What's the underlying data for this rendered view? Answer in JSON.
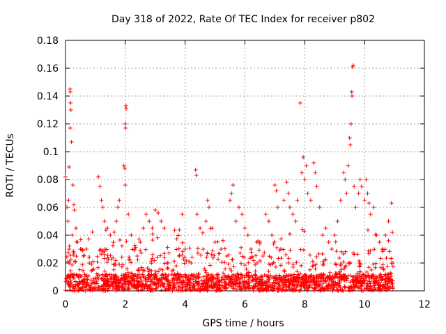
{
  "chart_data": {
    "type": "scatter",
    "title": "Day 318 of 2022, Rate Of TEC Index for receiver p802",
    "xlabel": "GPS time / hours",
    "ylabel": "ROTI / TECUs",
    "xlim": [
      0,
      12
    ],
    "ylim": [
      0,
      0.18
    ],
    "xticks": [
      0,
      2,
      4,
      6,
      8,
      10,
      12
    ],
    "yticks": [
      0,
      0.02,
      0.04,
      0.06,
      0.08,
      0.1,
      0.12,
      0.14,
      0.16,
      0.18
    ],
    "xtick_labels": [
      "0",
      "2",
      "4",
      "6",
      "8",
      "10",
      "12"
    ],
    "ytick_labels": [
      "0",
      "0.02",
      "0.04",
      "0.06",
      "0.08",
      "0.1",
      "0.12",
      "0.14",
      "0.16",
      "0.18"
    ],
    "grid": true,
    "marker": "+",
    "color": "#ff0000",
    "series": [
      {
        "name": "ROTI p802",
        "points": [
          [
            0.0,
            0.082
          ],
          [
            0.05,
            0.06
          ],
          [
            0.08,
            0.05
          ],
          [
            0.1,
            0.065
          ],
          [
            0.12,
            0.03
          ],
          [
            0.15,
            0.145
          ],
          [
            0.16,
            0.143
          ],
          [
            0.17,
            0.135
          ],
          [
            0.18,
            0.13
          ],
          [
            0.16,
            0.117
          ],
          [
            0.2,
            0.107
          ],
          [
            0.12,
            0.089
          ],
          [
            0.25,
            0.076
          ],
          [
            0.28,
            0.062
          ],
          [
            0.3,
            0.058
          ],
          [
            0.35,
            0.045
          ],
          [
            0.22,
            0.04
          ],
          [
            0.4,
            0.035
          ],
          [
            0.5,
            0.03
          ],
          [
            0.6,
            0.025
          ],
          [
            0.7,
            0.03
          ],
          [
            0.8,
            0.02
          ],
          [
            0.9,
            0.015
          ],
          [
            1.1,
            0.082
          ],
          [
            1.15,
            0.075
          ],
          [
            1.2,
            0.065
          ],
          [
            1.25,
            0.06
          ],
          [
            1.3,
            0.05
          ],
          [
            1.4,
            0.045
          ],
          [
            1.5,
            0.04
          ],
          [
            1.6,
            0.035
          ],
          [
            1.7,
            0.05
          ],
          [
            1.75,
            0.06
          ],
          [
            1.8,
            0.065
          ],
          [
            1.95,
            0.09
          ],
          [
            1.98,
            0.088
          ],
          [
            2.0,
            0.12
          ],
          [
            2.02,
            0.133
          ],
          [
            2.03,
            0.131
          ],
          [
            2.01,
            0.117
          ],
          [
            2.0,
            0.076
          ],
          [
            2.1,
            0.055
          ],
          [
            2.2,
            0.04
          ],
          [
            2.3,
            0.03
          ],
          [
            2.4,
            0.025
          ],
          [
            2.5,
            0.035
          ],
          [
            2.6,
            0.045
          ],
          [
            2.7,
            0.055
          ],
          [
            2.8,
            0.05
          ],
          [
            2.9,
            0.045
          ],
          [
            3.0,
            0.058
          ],
          [
            3.1,
            0.056
          ],
          [
            3.2,
            0.05
          ],
          [
            3.3,
            0.045
          ],
          [
            3.4,
            0.02
          ],
          [
            3.6,
            0.015
          ],
          [
            3.8,
            0.025
          ],
          [
            3.9,
            0.055
          ],
          [
            4.0,
            0.03
          ],
          [
            4.2,
            0.02
          ],
          [
            4.35,
            0.087
          ],
          [
            4.37,
            0.083
          ],
          [
            4.4,
            0.055
          ],
          [
            4.5,
            0.045
          ],
          [
            4.6,
            0.03
          ],
          [
            4.7,
            0.05
          ],
          [
            4.75,
            0.065
          ],
          [
            4.8,
            0.06
          ],
          [
            4.9,
            0.045
          ],
          [
            5.0,
            0.035
          ],
          [
            5.2,
            0.03
          ],
          [
            5.4,
            0.025
          ],
          [
            5.5,
            0.065
          ],
          [
            5.55,
            0.07
          ],
          [
            5.6,
            0.076
          ],
          [
            5.7,
            0.05
          ],
          [
            5.8,
            0.06
          ],
          [
            5.9,
            0.055
          ],
          [
            6.0,
            0.045
          ],
          [
            6.1,
            0.04
          ],
          [
            6.2,
            0.03
          ],
          [
            6.4,
            0.035
          ],
          [
            6.5,
            0.035
          ],
          [
            6.6,
            0.025
          ],
          [
            6.7,
            0.055
          ],
          [
            6.8,
            0.05
          ],
          [
            6.9,
            0.04
          ],
          [
            7.0,
            0.076
          ],
          [
            7.05,
            0.072
          ],
          [
            7.1,
            0.06
          ],
          [
            7.2,
            0.03
          ],
          [
            7.3,
            0.065
          ],
          [
            7.4,
            0.078
          ],
          [
            7.45,
            0.07
          ],
          [
            7.5,
            0.06
          ],
          [
            7.6,
            0.055
          ],
          [
            7.7,
            0.05
          ],
          [
            7.75,
            0.065
          ],
          [
            7.85,
            0.135
          ],
          [
            7.9,
            0.085
          ],
          [
            7.95,
            0.096
          ],
          [
            8.0,
            0.08
          ],
          [
            8.05,
            0.09
          ],
          [
            8.1,
            0.07
          ],
          [
            8.2,
            0.065
          ],
          [
            8.3,
            0.092
          ],
          [
            8.35,
            0.085
          ],
          [
            8.4,
            0.075
          ],
          [
            8.5,
            0.06
          ],
          [
            8.6,
            0.04
          ],
          [
            8.7,
            0.045
          ],
          [
            8.8,
            0.035
          ],
          [
            8.9,
            0.03
          ],
          [
            9.0,
            0.04
          ],
          [
            9.1,
            0.05
          ],
          [
            9.2,
            0.065
          ],
          [
            9.3,
            0.085
          ],
          [
            9.35,
            0.08
          ],
          [
            9.4,
            0.07
          ],
          [
            9.45,
            0.09
          ],
          [
            9.5,
            0.11
          ],
          [
            9.52,
            0.105
          ],
          [
            9.55,
            0.12
          ],
          [
            9.57,
            0.143
          ],
          [
            9.58,
            0.14
          ],
          [
            9.6,
            0.161
          ],
          [
            9.62,
            0.162
          ],
          [
            9.65,
            0.075
          ],
          [
            9.7,
            0.06
          ],
          [
            9.8,
            0.07
          ],
          [
            9.85,
            0.08
          ],
          [
            9.9,
            0.075
          ],
          [
            10.0,
            0.065
          ],
          [
            10.05,
            0.08
          ],
          [
            10.1,
            0.07
          ],
          [
            10.15,
            0.063
          ],
          [
            10.2,
            0.055
          ],
          [
            10.3,
            0.06
          ],
          [
            10.4,
            0.04
          ],
          [
            10.5,
            0.035
          ],
          [
            10.6,
            0.03
          ],
          [
            10.7,
            0.04
          ],
          [
            10.8,
            0.05
          ],
          [
            10.9,
            0.063
          ],
          [
            10.95,
            0.02
          ]
        ]
      }
    ]
  }
}
